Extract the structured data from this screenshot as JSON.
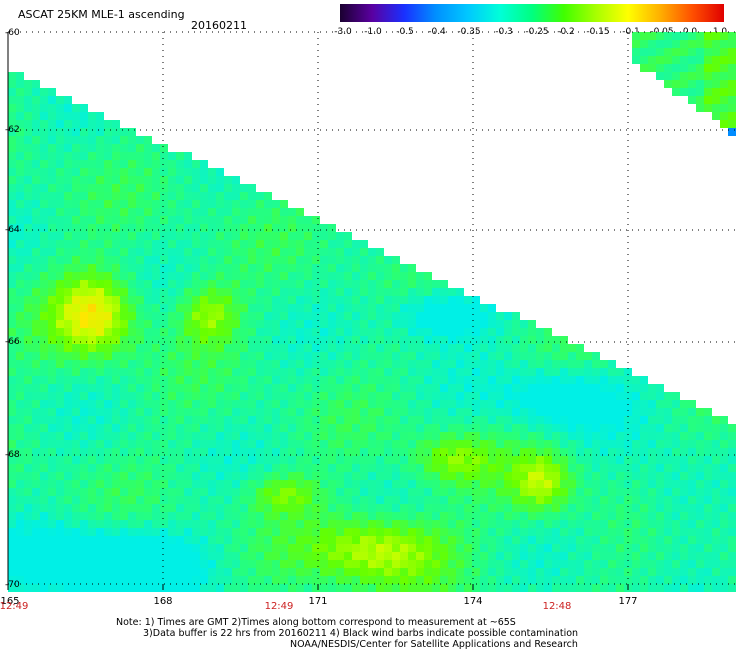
{
  "header": {
    "title": "ASCAT 25KM MLE-1 ascending",
    "date": "20160211"
  },
  "colorbar": {
    "labels": [
      "-3.0",
      "-1.0",
      "-0.5",
      "-0.4",
      "-0.35",
      "-0.3",
      "-0.25",
      "-0.2",
      "-0.15",
      "-0.1",
      "-0.05",
      "0.0",
      "1.0"
    ],
    "colors": [
      "#1a0030",
      "#5a00a0",
      "#1a30ff",
      "#0090ff",
      "#00c8ff",
      "#00ffd8",
      "#00ff80",
      "#40ff00",
      "#a8ff00",
      "#ffff00",
      "#ffb000",
      "#ff5000",
      "#e00000"
    ]
  },
  "axes": {
    "lat_labels": [
      "-60",
      "-62",
      "-64",
      "-66",
      "-68",
      "-70"
    ],
    "lon_labels": [
      "165",
      "168",
      "171",
      "174",
      "177"
    ],
    "time_labels": [
      "12:49",
      "12:49",
      "12:48"
    ]
  },
  "notes": {
    "line1": "Note: 1) Times are GMT 2)Times along bottom correspond to measurement at ~65S",
    "line2": "3)Data buffer is 22 hrs from 20160211 4) Black wind barbs indicate possible contamination",
    "line3": "NOAA/NESDIS/Center for Satellite Applications and Research"
  }
}
